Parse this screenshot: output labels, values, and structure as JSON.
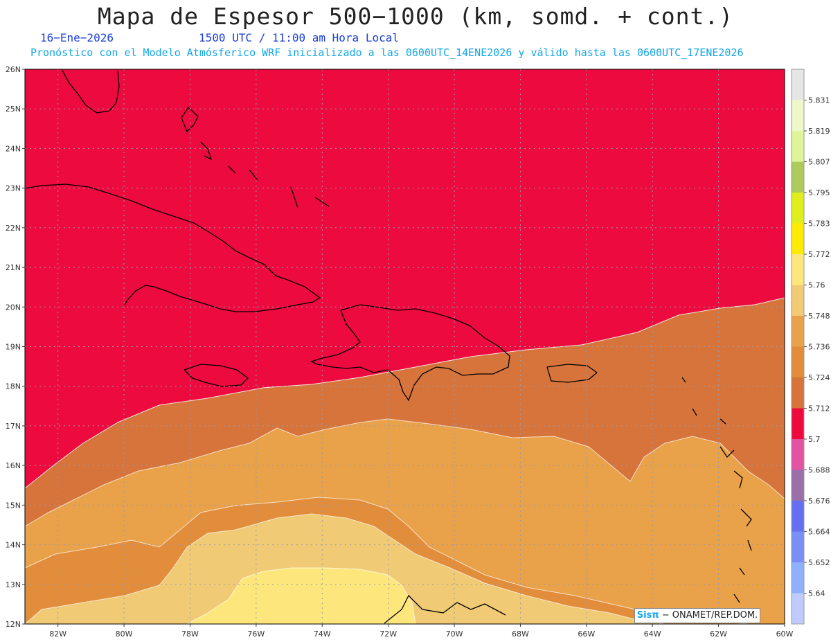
{
  "header": {
    "title": "Mapa de Espesor 500−1000 (km, somd. + cont.)",
    "date": "16−Ene−2026",
    "time": "1500 UTC / 11:00 am Hora Local",
    "forecast": "Pronóstico con el Modelo Atmósferico WRF inicializado a las 0600UTC_14ENE2026 y válido hasta las  0600UTC_17ENE2026"
  },
  "map": {
    "lat_ticks": [
      "12N",
      "13N",
      "14N",
      "15N",
      "16N",
      "17N",
      "18N",
      "19N",
      "20N",
      "21N",
      "22N",
      "23N",
      "24N",
      "25N",
      "26N"
    ],
    "lon_ticks": [
      "82W",
      "80W",
      "78W",
      "76W",
      "74W",
      "72W",
      "70W",
      "68W",
      "66W",
      "64W",
      "62W",
      "60W"
    ],
    "bands": [
      {
        "name": "band-5640",
        "color": "#b5c7ff"
      },
      {
        "name": "band-5652",
        "color": "#8fb0ff"
      },
      {
        "name": "band-5664",
        "color": "#7a8ff5"
      },
      {
        "name": "band-5676",
        "color": "#6570f0"
      },
      {
        "name": "band-5688",
        "color": "#9a70a8"
      },
      {
        "name": "band-5700",
        "color": "#e253a2"
      },
      {
        "name": "band-5712",
        "color": "#ec0a3e"
      },
      {
        "name": "band-5724",
        "color": "#d6743c"
      },
      {
        "name": "band-5736",
        "color": "#e28d3c"
      },
      {
        "name": "band-5748",
        "color": "#eaa24a"
      },
      {
        "name": "band-5760",
        "color": "#f0ca74"
      },
      {
        "name": "band-5772",
        "color": "#fde77c"
      },
      {
        "name": "band-5783",
        "color": "#fceb04"
      }
    ]
  },
  "legend": {
    "labels": [
      "5.64",
      "5.652",
      "5.664",
      "5.676",
      "5.688",
      "5.7",
      "5.712",
      "5.724",
      "5.736",
      "5.748",
      "5.76",
      "5.772",
      "5.783",
      "5.795",
      "5.807",
      "5.819",
      "5.831"
    ],
    "colors": [
      "#bfcbff",
      "#8fb0ff",
      "#7a8ff5",
      "#6570f0",
      "#9a70a8",
      "#e253a2",
      "#ec0a3e",
      "#d6743c",
      "#e28d3c",
      "#eaa24a",
      "#f0ca74",
      "#fde77c",
      "#fceb04",
      "#dfee1c",
      "#aec95c",
      "#e0f59a",
      "#eef8c8",
      "#e6e6e6"
    ]
  },
  "credit": {
    "brand": "Sisπ",
    "text": " − ONAMET/REP.DOM."
  }
}
